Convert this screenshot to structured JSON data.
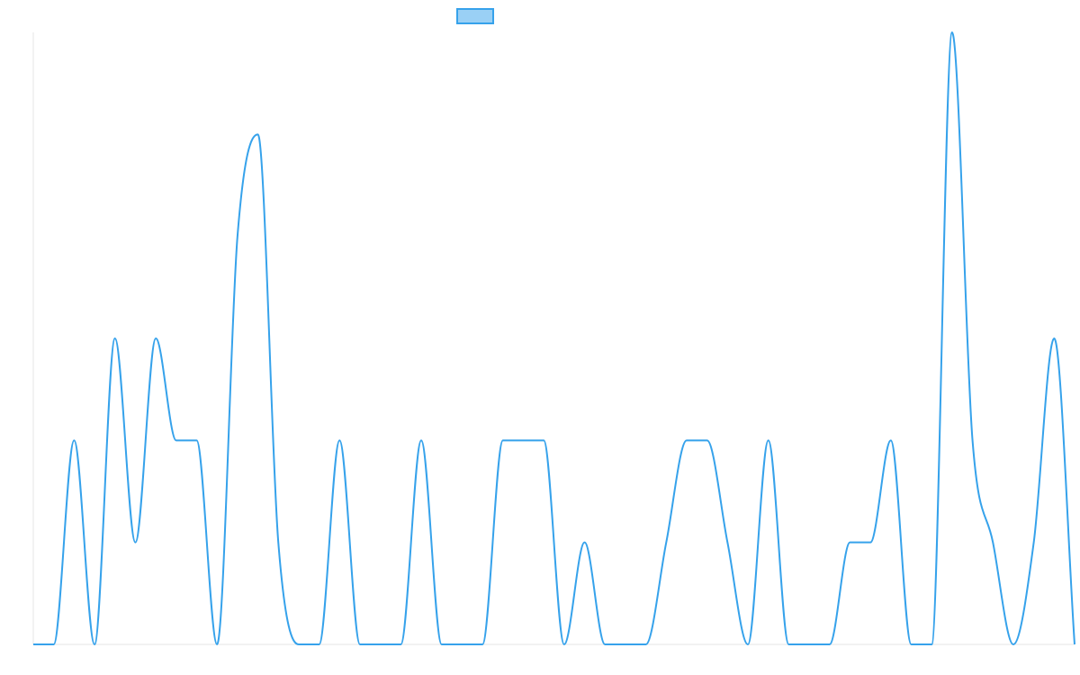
{
  "chart_data": {
    "type": "line",
    "title": "",
    "xlabel": "",
    "ylabel": "",
    "legend_position": "top-center",
    "grid": false,
    "ylim": [
      0,
      6
    ],
    "series": [
      {
        "color": "#36A2EB",
        "legend_fill": "#9AD0F5",
        "values": [
          0,
          0,
          2,
          0,
          3,
          1,
          3,
          2,
          2,
          0,
          4,
          5,
          1,
          0,
          0,
          2,
          0,
          0,
          0,
          2,
          0,
          0,
          0,
          2,
          2,
          2,
          0,
          1,
          0,
          0,
          0,
          1,
          2,
          2,
          1,
          0,
          2,
          0,
          0,
          0,
          1,
          1,
          2,
          0,
          0,
          6,
          2,
          1,
          0,
          1,
          3,
          0
        ]
      }
    ]
  }
}
